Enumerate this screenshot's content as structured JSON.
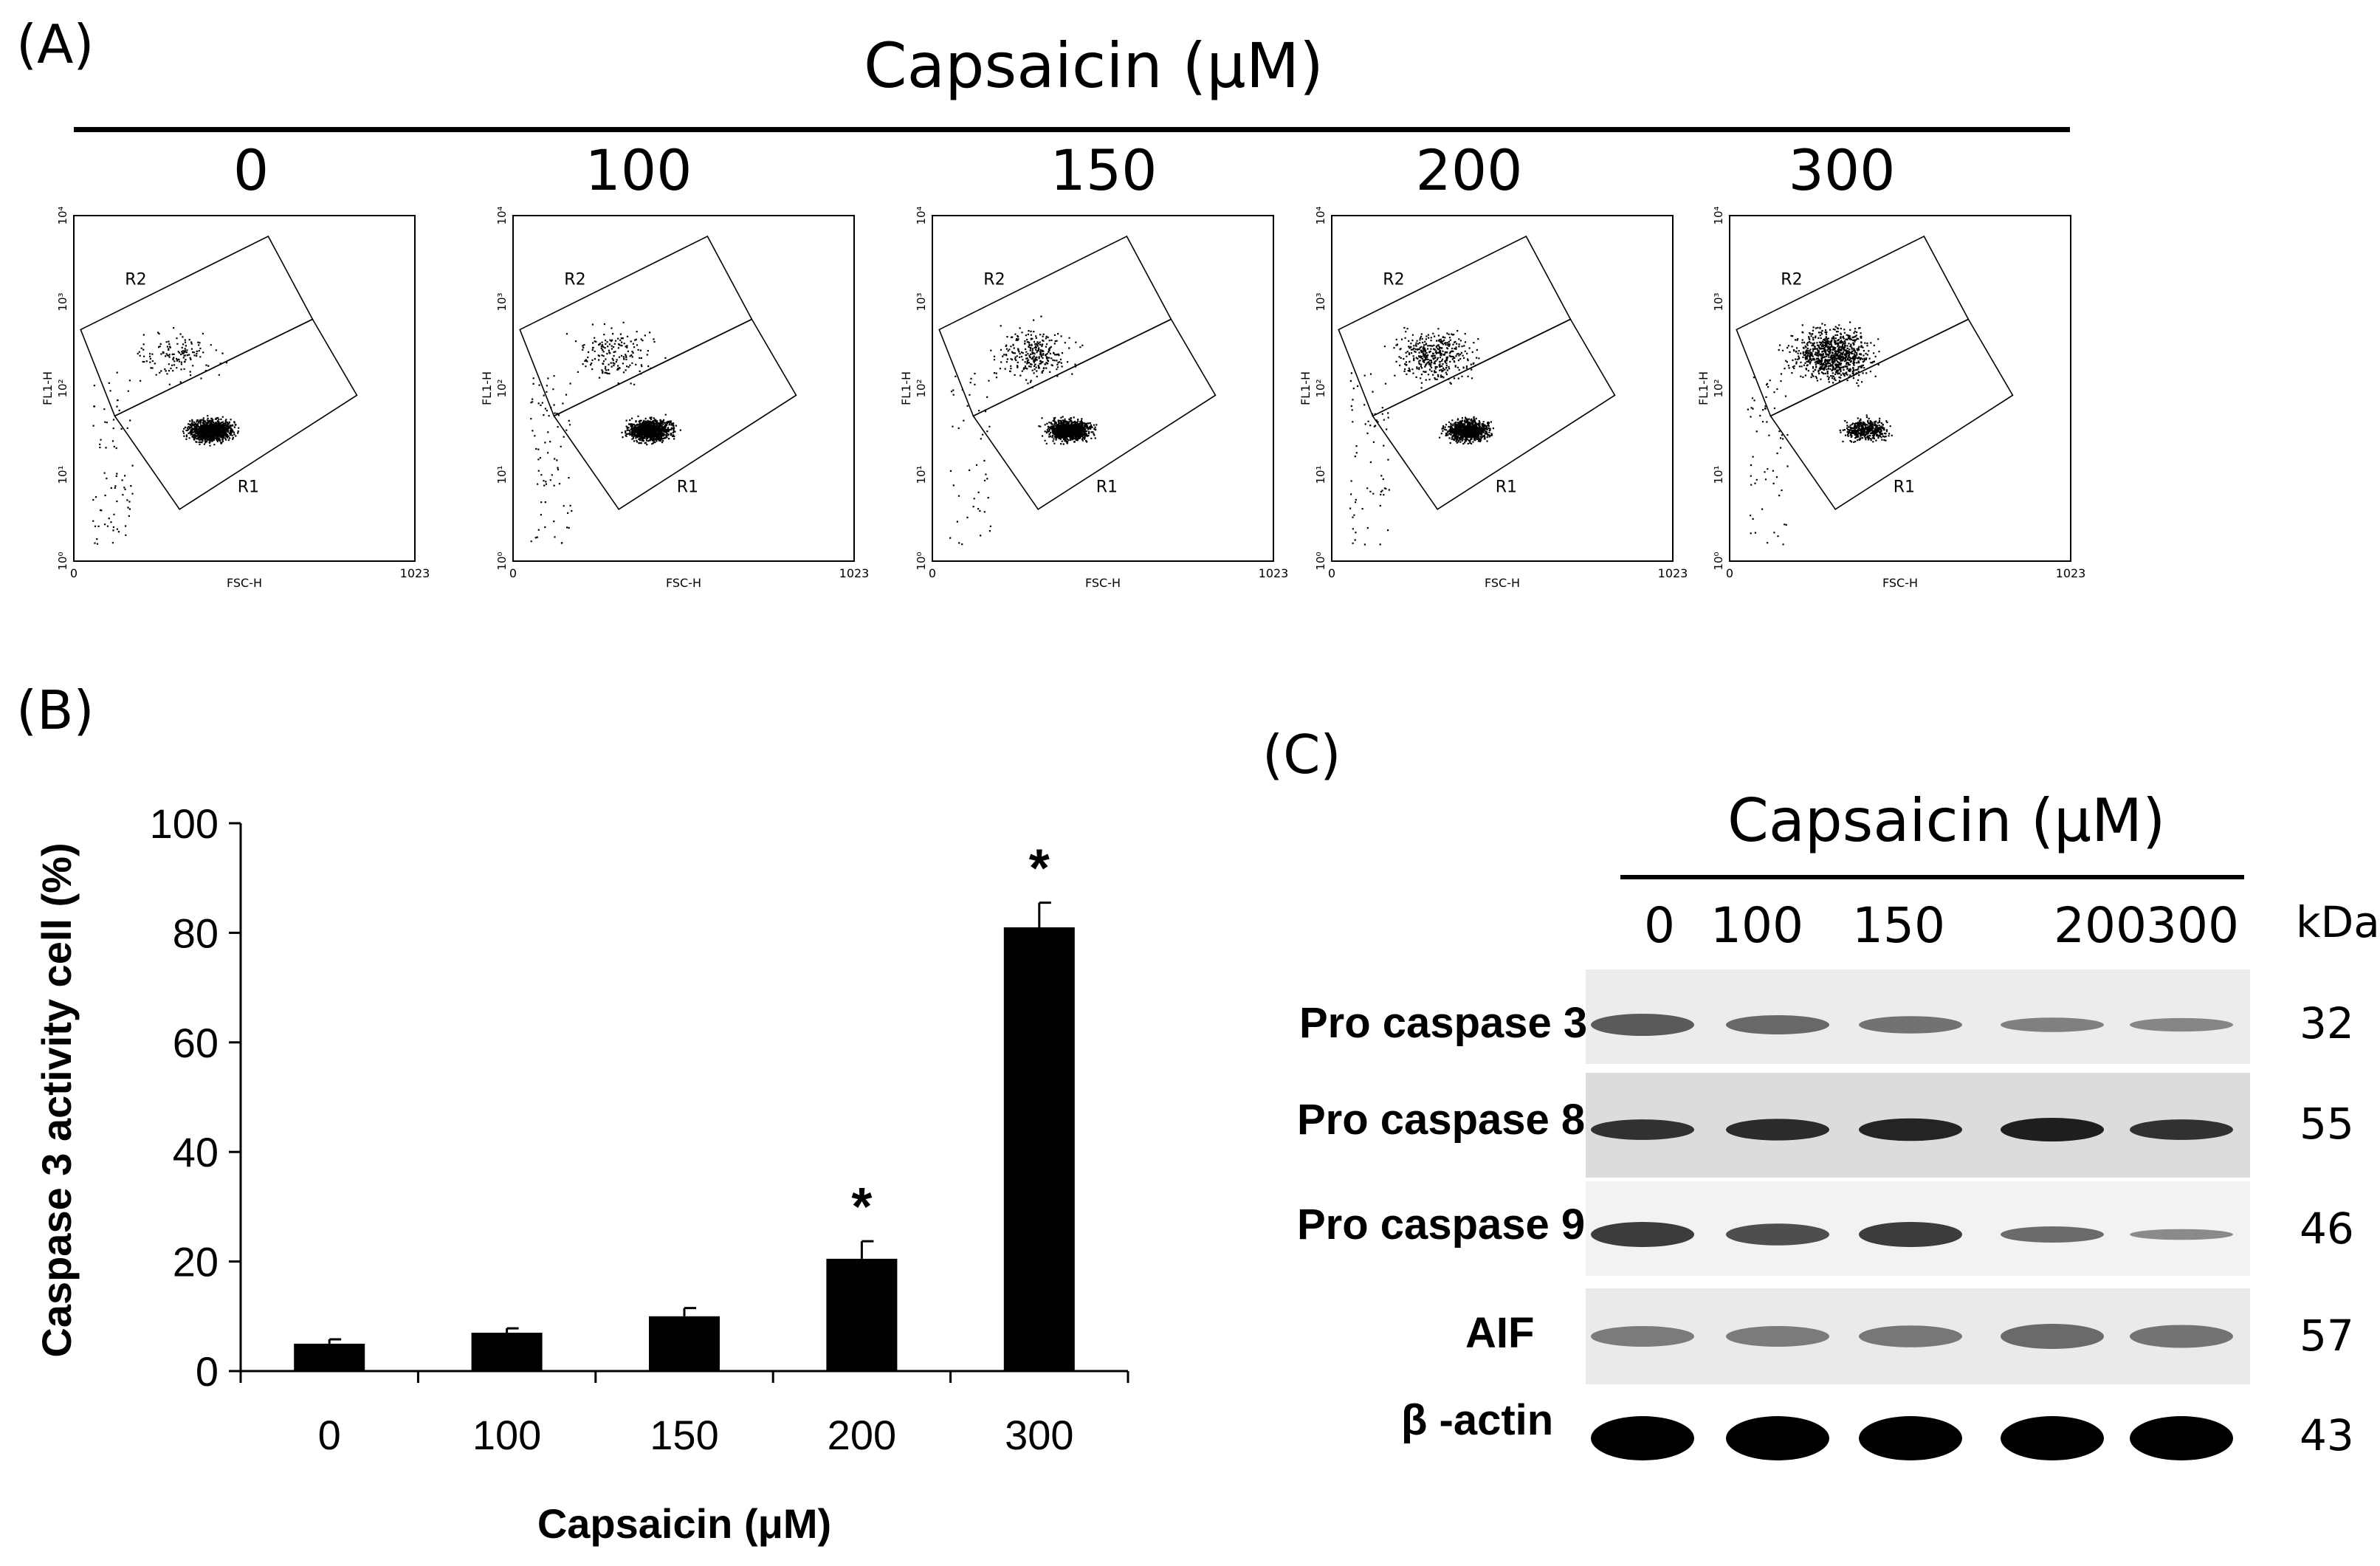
{
  "panel_labels": {
    "a": "(A)",
    "b": "(B)",
    "c": "(C)"
  },
  "flow": {
    "title": "Capsaicin (μM)",
    "doses": [
      "0",
      "100",
      "150",
      "200",
      "300"
    ],
    "xlabel": "FSC-H",
    "ylabel": "FL1-H",
    "x_ticks": [
      "0",
      "1023"
    ],
    "y_ticks": [
      "10⁰",
      "10¹",
      "10²",
      "10³",
      "10⁴"
    ],
    "gates": [
      "R1",
      "R2"
    ]
  },
  "chart_data": {
    "type": "bar",
    "categories": [
      "0",
      "100",
      "150",
      "200",
      "300"
    ],
    "values": [
      5,
      7,
      10,
      20.5,
      81
    ],
    "errors": [
      0.8,
      0.8,
      1.5,
      3.2,
      4.5
    ],
    "significance": [
      "",
      "",
      "",
      "*",
      "*"
    ],
    "xlabel": "Capsaicin (μM)",
    "ylabel": "Caspase 3 activity cell (%)",
    "ylim": [
      0,
      100
    ],
    "yticks": [
      0,
      20,
      40,
      60,
      80,
      100
    ],
    "bar_color": "#000000"
  },
  "blot": {
    "title": "Capsaicin (μM)",
    "lanes": [
      "0",
      "100",
      "150",
      "200",
      "300"
    ],
    "unit": "kDa",
    "rows": [
      {
        "label": "Pro caspase 3",
        "mw": "32"
      },
      {
        "label": "Pro caspase 8",
        "mw": "55"
      },
      {
        "label": "Pro caspase 9",
        "mw": "46"
      },
      {
        "label": "AIF",
        "mw": "57"
      },
      {
        "label": "β -actin",
        "mw": "43"
      }
    ]
  }
}
